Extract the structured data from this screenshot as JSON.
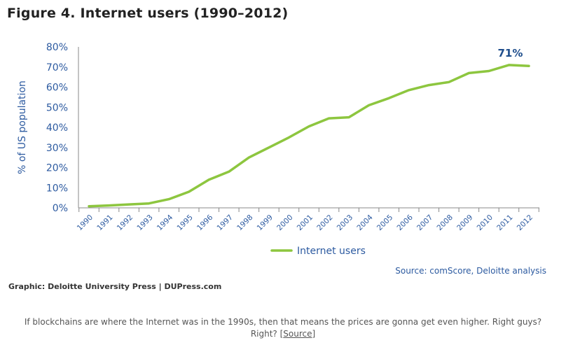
{
  "figure": {
    "title": "Figure 4. Internet users (1990–2012)",
    "source": "Source: comScore, Deloitte analysis",
    "credit": "Graphic: Deloitte University Press  |  DUPress.com"
  },
  "caption": {
    "line1": "If blockchains are where the Internet was in the 1990s, then that means the prices are gonna get even higher. Right guys?",
    "line2_prefix": "Right? [",
    "link": "Source",
    "line2_suffix": "]"
  },
  "colors": {
    "line": "#8dc63f",
    "axis_text": "#2c5aa0",
    "axis_line": "#888888",
    "annotation": "#1f4e8c"
  },
  "chart_data": {
    "type": "line",
    "title": "Figure 4. Internet users (1990–2012)",
    "xlabel": "",
    "ylabel": "% of US population",
    "categories": [
      "1990",
      "1991",
      "1992",
      "1993",
      "1994",
      "1995",
      "1996",
      "1997",
      "1998",
      "1999",
      "2000",
      "2001",
      "2002",
      "2003",
      "2004",
      "2005",
      "2006",
      "2007",
      "2008",
      "2009",
      "2010",
      "2011",
      "2012"
    ],
    "series": [
      {
        "name": "Internet users",
        "values": [
          0.8,
          1.2,
          1.7,
          2.2,
          4.3,
          8.0,
          14.0,
          18.0,
          25.0,
          30.0,
          35.0,
          40.5,
          44.5,
          45.0,
          51.0,
          54.5,
          58.5,
          61.0,
          62.5,
          67.0,
          68.0,
          71.0,
          70.5
        ]
      }
    ],
    "yticks": [
      "0%",
      "10%",
      "20%",
      "30%",
      "40%",
      "50%",
      "60%",
      "70%",
      "80%"
    ],
    "ylim": [
      0,
      80
    ],
    "annotation": "71%",
    "legend": "bottom-center",
    "grid": false
  }
}
